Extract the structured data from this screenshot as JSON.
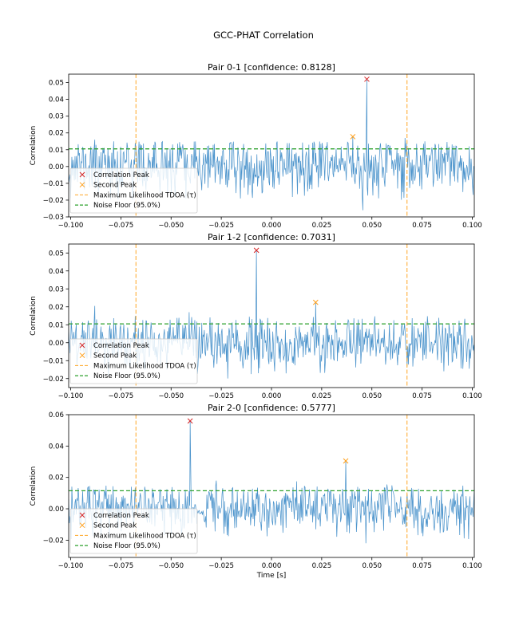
{
  "figure": {
    "suptitle": "GCC-PHAT Correlation"
  },
  "colors": {
    "signal": "#4c94cc",
    "peak": "#d62728",
    "second_peak": "#ff9f1a",
    "tdoa": "#ffa726",
    "noise_floor": "#2ca02c",
    "axes": "#000000"
  },
  "legend_labels": {
    "peak": "Correlation Peak",
    "second": "Second Peak",
    "tdoa": "Maximum Likelihood TDOA (τ)",
    "noise": "Noise Floor (95.0%)"
  },
  "chart_data": [
    {
      "type": "line",
      "title": "Pair 0-1 [confidence: 0.8128]",
      "xlabel": "",
      "ylabel": "Correlation",
      "xlim": [
        -0.101,
        0.101
      ],
      "ylim": [
        -0.03,
        0.055
      ],
      "xticks": [
        -0.1,
        -0.075,
        -0.05,
        -0.025,
        0.0,
        0.025,
        0.05,
        0.075,
        0.1
      ],
      "xtick_labels": [
        "−0.100",
        "−0.075",
        "−0.050",
        "−0.025",
        "0.000",
        "0.025",
        "0.050",
        "0.075",
        "0.100"
      ],
      "yticks": [
        -0.03,
        -0.02,
        -0.01,
        0.0,
        0.01,
        0.02,
        0.03,
        0.04,
        0.05
      ],
      "ytick_labels": [
        "−0.03",
        "−0.02",
        "−0.01",
        "0.00",
        "0.01",
        "0.02",
        "0.03",
        "0.04",
        "0.05"
      ],
      "series_seed": 11,
      "signal_std": 0.0085,
      "correlation_peak": {
        "x": 0.0475,
        "y": 0.052
      },
      "second_peak": {
        "x": 0.0405,
        "y": 0.0178
      },
      "extra_spikes": [
        {
          "x": -0.088,
          "y": 0.016
        },
        {
          "x": 0.0665,
          "y": 0.017
        },
        {
          "x": 0.0455,
          "y": -0.026
        }
      ],
      "tdoa_lines": [
        -0.0675,
        0.0675
      ],
      "noise_floor": 0.0105,
      "legend": "lower-left"
    },
    {
      "type": "line",
      "title": "Pair 1-2 [confidence: 0.7031]",
      "xlabel": "",
      "ylabel": "Correlation",
      "xlim": [
        -0.101,
        0.101
      ],
      "ylim": [
        -0.025,
        0.055
      ],
      "xticks": [
        -0.1,
        -0.075,
        -0.05,
        -0.025,
        0.0,
        0.025,
        0.05,
        0.075,
        0.1
      ],
      "xtick_labels": [
        "−0.100",
        "−0.075",
        "−0.050",
        "−0.025",
        "0.000",
        "0.025",
        "0.050",
        "0.075",
        "0.100"
      ],
      "yticks": [
        -0.02,
        -0.01,
        0.0,
        0.01,
        0.02,
        0.03,
        0.04,
        0.05
      ],
      "ytick_labels": [
        "−0.02",
        "−0.01",
        "0.00",
        "0.01",
        "0.02",
        "0.03",
        "0.04",
        "0.05"
      ],
      "series_seed": 29,
      "signal_std": 0.0075,
      "correlation_peak": {
        "x": -0.0075,
        "y": 0.0515
      },
      "second_peak": {
        "x": 0.022,
        "y": 0.0225
      },
      "extra_spikes": [
        {
          "x": -0.088,
          "y": 0.0205
        },
        {
          "x": -0.041,
          "y": 0.017
        },
        {
          "x": -0.0065,
          "y": -0.017
        }
      ],
      "tdoa_lines": [
        -0.0675,
        0.0675
      ],
      "noise_floor": 0.0105,
      "legend": "lower-left"
    },
    {
      "type": "line",
      "title": "Pair 2-0 [confidence: 0.5777]",
      "xlabel": "Time [s]",
      "ylabel": "Correlation",
      "xlim": [
        -0.101,
        0.101
      ],
      "ylim": [
        -0.031,
        0.06
      ],
      "xticks": [
        -0.1,
        -0.075,
        -0.05,
        -0.025,
        0.0,
        0.025,
        0.05,
        0.075,
        0.1
      ],
      "xtick_labels": [
        "−0.100",
        "−0.075",
        "−0.050",
        "−0.025",
        "0.000",
        "0.025",
        "0.050",
        "0.075",
        "0.100"
      ],
      "yticks": [
        -0.02,
        0.0,
        0.02,
        0.04,
        0.06
      ],
      "ytick_labels": [
        "−0.02",
        "0.00",
        "0.02",
        "0.04",
        "0.06"
      ],
      "series_seed": 47,
      "signal_std": 0.0078,
      "correlation_peak": {
        "x": -0.0405,
        "y": 0.056
      },
      "second_peak": {
        "x": 0.037,
        "y": 0.0305
      },
      "extra_spikes": [
        {
          "x": -0.0275,
          "y": 0.018
        },
        {
          "x": 0.0125,
          "y": 0.0175
        },
        {
          "x": 0.0575,
          "y": 0.0155
        },
        {
          "x": 0.047,
          "y": -0.022
        }
      ],
      "tdoa_lines": [
        -0.0675,
        0.0675
      ],
      "noise_floor": 0.0115,
      "legend": "lower-left"
    }
  ]
}
